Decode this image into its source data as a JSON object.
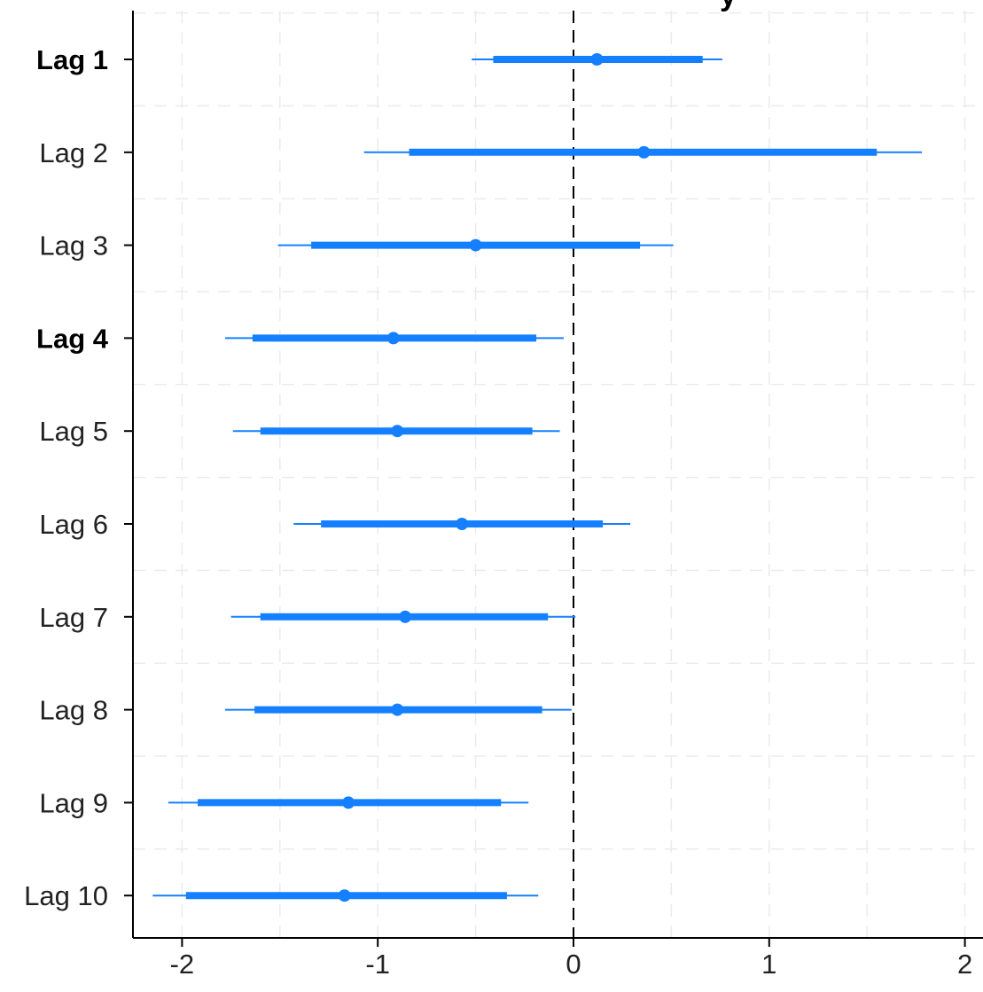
{
  "colors": {
    "interval": "#1580ff",
    "point": "#1580ff",
    "axis": "#000000",
    "grid": "#ebebeb"
  },
  "title_fragment": "y",
  "chart_data": {
    "type": "interval",
    "title": "",
    "xlabel": "",
    "ylabel": "",
    "xlim": [
      -2.25,
      2.1
    ],
    "x_ticks": [
      -2,
      -1,
      0,
      1,
      2
    ],
    "x_tick_labels": [
      "-2",
      "-1",
      "0",
      "1",
      "2"
    ],
    "reference_line": 0,
    "grid": true,
    "legend": "none",
    "categories": [
      "Lag 1",
      "Lag 2",
      "Lag 3",
      "Lag 4",
      "Lag 5",
      "Lag 6",
      "Lag 7",
      "Lag 8",
      "Lag 9",
      "Lag 10"
    ],
    "bold_categories": [
      "Lag 1",
      "Lag 4"
    ],
    "series": [
      {
        "estimate": [
          0.12,
          0.36,
          -0.5,
          -0.92,
          -0.9,
          -0.57,
          -0.86,
          -0.9,
          -1.15,
          -1.17
        ],
        "inner_low": [
          -0.41,
          -0.84,
          -1.34,
          -1.64,
          -1.6,
          -1.29,
          -1.6,
          -1.63,
          -1.92,
          -1.98
        ],
        "inner_high": [
          0.66,
          1.55,
          0.34,
          -0.19,
          -0.21,
          0.15,
          -0.13,
          -0.16,
          -0.37,
          -0.34
        ],
        "outer_low": [
          -0.52,
          -1.07,
          -1.51,
          -1.78,
          -1.74,
          -1.43,
          -1.75,
          -1.78,
          -2.07,
          -2.15
        ],
        "outer_high": [
          0.76,
          1.78,
          0.51,
          -0.05,
          -0.07,
          0.29,
          0.01,
          -0.01,
          -0.23,
          -0.18
        ]
      }
    ]
  }
}
